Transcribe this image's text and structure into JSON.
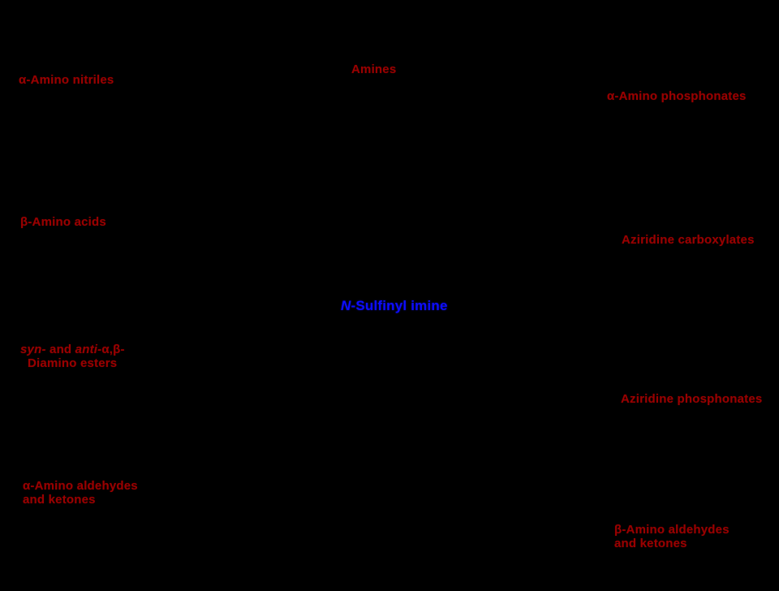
{
  "scheme": {
    "description": "Reaction scheme hub diagram: products accessible from an N-sulfinyl imine",
    "background_color": "#000000",
    "product_label_color": "#990000",
    "center_label_color": "#0d0dff",
    "labels": {
      "amino_nitriles": "α-Amino nitriles",
      "amines": "Amines",
      "amino_phosphonates": "α-Amino phosphonates",
      "beta_amino_acids": "β-Amino acids",
      "aziridine_carboxylates": "Aziridine carboxylates",
      "center": {
        "italic_prefix": "N",
        "rest": "-Sulfinyl imine"
      },
      "diamino_esters": {
        "syn": "syn-",
        "and": " and ",
        "anti": "anti-",
        "greek": "α,β-",
        "line2": "Diamino esters"
      },
      "aziridine_phosphonates": "Aziridine phosphonates",
      "alpha_amino_carbonyls": {
        "line1": "α-Amino aldehydes",
        "line2": "and ketones"
      },
      "beta_amino_carbonyls": {
        "line1": "β-Amino aldehydes",
        "line2": "and ketones"
      }
    }
  }
}
